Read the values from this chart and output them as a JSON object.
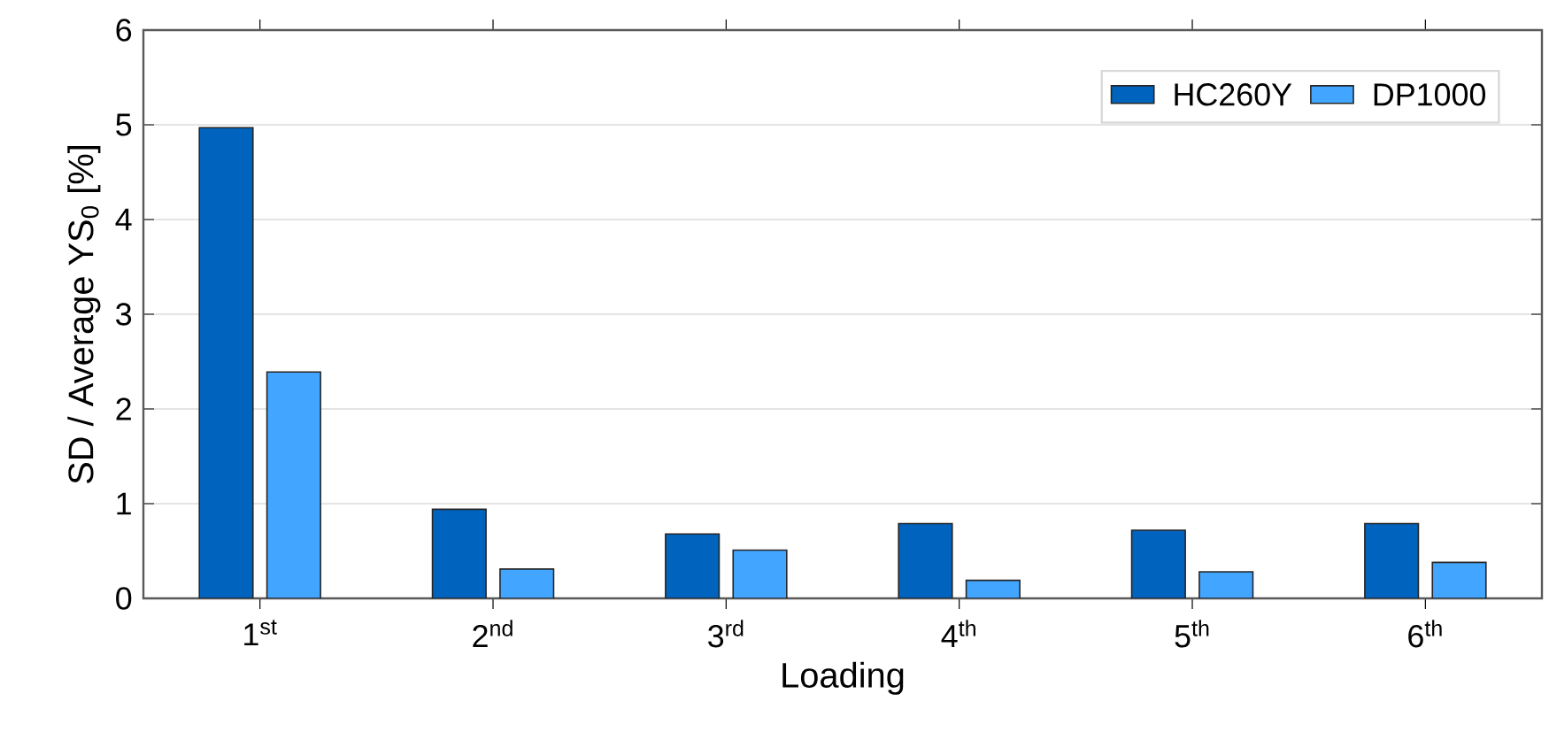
{
  "chart_data": {
    "type": "bar",
    "xlabel": "Loading",
    "ylabel": "SD / Average YS$_{0}$ [%]",
    "categories": [
      "1$^{st}$",
      "2$^{nd}$",
      "3$^{rd}$",
      "4$^{th}$",
      "5$^{th}$",
      "6$^{th}$"
    ],
    "series": [
      {
        "name": "HC260Y",
        "color": "#0063bd",
        "values": [
          4.97,
          0.94,
          0.68,
          0.79,
          0.72,
          0.79
        ]
      },
      {
        "name": "DP1000",
        "color": "#42a5ff",
        "values": [
          2.39,
          0.31,
          0.51,
          0.19,
          0.28,
          0.38
        ]
      }
    ],
    "ylim": [
      0,
      6
    ],
    "yticks": [
      0,
      1,
      2,
      3,
      4,
      5,
      6
    ],
    "grid": "y",
    "legend": "top right"
  }
}
